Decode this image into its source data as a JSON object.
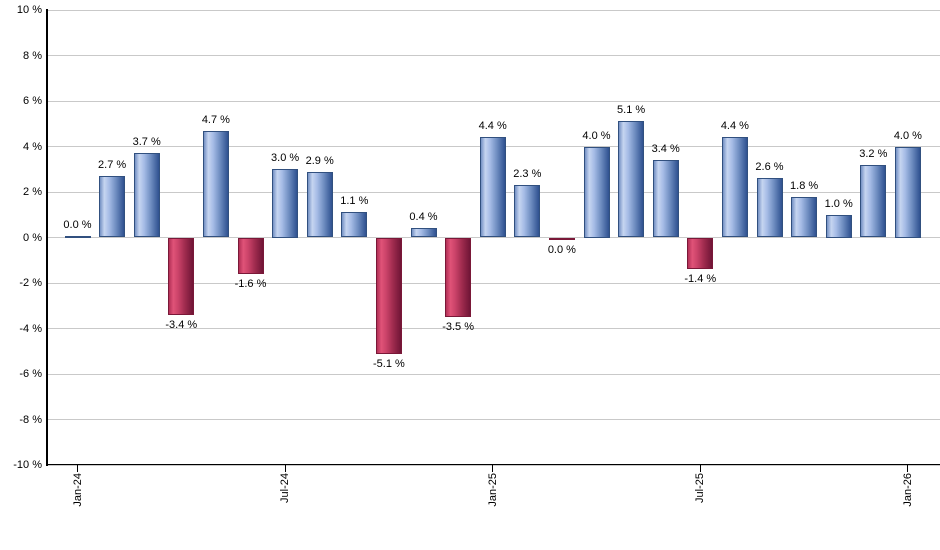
{
  "chart_data": {
    "type": "bar",
    "title": "",
    "xlabel": "",
    "ylabel": "",
    "ylim": [
      -10,
      10
    ],
    "y_tick_step": 2,
    "grid": "horizontal-only",
    "legend": "none",
    "y_tick_labels": [
      "10 %",
      "8 %",
      "6 %",
      "4 %",
      "2 %",
      "0 %",
      "-2 %",
      "-4 %",
      "-6 %",
      "-8 %",
      "-10 %"
    ],
    "x_tick_labels": [
      "Jan-24",
      "Jul-24",
      "Jan-25",
      "Jul-25",
      "Jan-26"
    ],
    "x_tick_indices": [
      0,
      6,
      12,
      18,
      24
    ],
    "categories": [
      "Jan-24",
      "Feb-24",
      "Mar-24",
      "Apr-24",
      "May-24",
      "Jun-24",
      "Jul-24",
      "Aug-24",
      "Sep-24",
      "Oct-24",
      "Nov-24",
      "Dec-24",
      "Jan-25",
      "Feb-25",
      "Mar-25",
      "Apr-25",
      "May-25",
      "Jun-25",
      "Jul-25",
      "Aug-25",
      "Sep-25",
      "Oct-25",
      "Nov-25",
      "Dec-25",
      "Jan-26"
    ],
    "points": [
      {
        "month": "Jan-24",
        "value": 0.0,
        "label": "0.0 %",
        "direction": "positive"
      },
      {
        "month": "Feb-24",
        "value": 2.7,
        "label": "2.7 %",
        "direction": "positive"
      },
      {
        "month": "Mar-24",
        "value": 3.7,
        "label": "3.7 %",
        "direction": "positive"
      },
      {
        "month": "Apr-24",
        "value": -3.4,
        "label": "-3.4 %",
        "direction": "negative"
      },
      {
        "month": "May-24",
        "value": 4.7,
        "label": "4.7 %",
        "direction": "positive"
      },
      {
        "month": "Jun-24",
        "value": -1.6,
        "label": "-1.6 %",
        "direction": "negative"
      },
      {
        "month": "Jul-24",
        "value": 3.0,
        "label": "3.0 %",
        "direction": "positive"
      },
      {
        "month": "Aug-24",
        "value": 2.9,
        "label": "2.9 %",
        "direction": "positive"
      },
      {
        "month": "Sep-24",
        "value": 1.1,
        "label": "1.1 %",
        "direction": "positive"
      },
      {
        "month": "Oct-24",
        "value": -5.1,
        "label": "-5.1 %",
        "direction": "negative"
      },
      {
        "month": "Nov-24",
        "value": 0.4,
        "label": "0.4 %",
        "direction": "positive"
      },
      {
        "month": "Dec-24",
        "value": -3.5,
        "label": "-3.5 %",
        "direction": "negative"
      },
      {
        "month": "Jan-25",
        "value": 4.4,
        "label": "4.4 %",
        "direction": "positive"
      },
      {
        "month": "Feb-25",
        "value": 2.3,
        "label": "2.3 %",
        "direction": "positive"
      },
      {
        "month": "Mar-25",
        "value": 0.0,
        "label": "0.0 %",
        "direction": "negative"
      },
      {
        "month": "Apr-25",
        "value": 4.0,
        "label": "4.0 %",
        "direction": "positive"
      },
      {
        "month": "May-25",
        "value": 5.1,
        "label": "5.1 %",
        "direction": "positive"
      },
      {
        "month": "Jun-25",
        "value": 3.4,
        "label": "3.4 %",
        "direction": "positive"
      },
      {
        "month": "Jul-25",
        "value": -1.4,
        "label": "-1.4 %",
        "direction": "negative"
      },
      {
        "month": "Aug-25",
        "value": 4.4,
        "label": "4.4 %",
        "direction": "positive"
      },
      {
        "month": "Sep-25",
        "value": 2.6,
        "label": "2.6 %",
        "direction": "positive"
      },
      {
        "month": "Oct-25",
        "value": 1.8,
        "label": "1.8 %",
        "direction": "positive"
      },
      {
        "month": "Nov-25",
        "value": 1.0,
        "label": "1.0 %",
        "direction": "positive"
      },
      {
        "month": "Dec-25",
        "value": 3.2,
        "label": "3.2 %",
        "direction": "positive"
      },
      {
        "month": "Jan-26",
        "value": 4.0,
        "label": "4.0 %",
        "direction": "positive"
      }
    ]
  },
  "colors": {
    "positive_bar_gradient": [
      "#7491c4",
      "#c6d5f0",
      "#a6bce6",
      "#6b8abe",
      "#2f5190"
    ],
    "negative_bar_gradient": [
      "#b23056",
      "#e05378",
      "#cb4369",
      "#9d2a4d",
      "#701536"
    ],
    "positive_bar_border": "#31507f",
    "negative_bar_border": "#7a1838",
    "gridline": "#c9c9c9",
    "axis": "#000000",
    "label_text": "#000000",
    "background": "#ffffff"
  }
}
